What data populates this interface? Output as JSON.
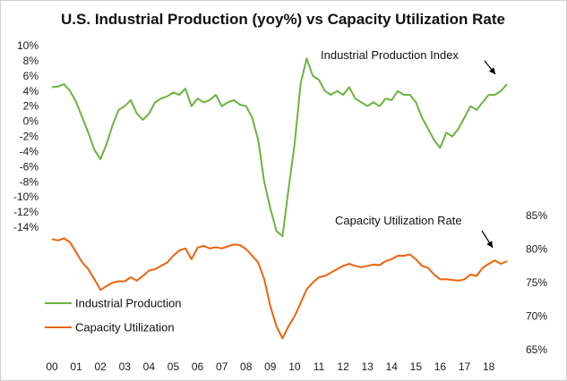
{
  "chart_data": {
    "type": "line",
    "title": "U.S. Industrial Production (yoy%) vs Capacity Utilization Rate",
    "colors": {
      "industrial_production": "#6cb33f",
      "capacity_utilization": "#e8650f",
      "annotation_arrow": "#000000"
    },
    "x_axis": {
      "tick_labels": [
        "00",
        "01",
        "02",
        "03",
        "04",
        "05",
        "06",
        "07",
        "08",
        "09",
        "10",
        "11",
        "12",
        "13",
        "14",
        "15",
        "16",
        "17",
        "18"
      ],
      "range": [
        2000.0,
        2018.9
      ]
    },
    "y_left": {
      "unit": "percent",
      "range": [
        -14,
        10
      ],
      "tick_values": [
        10,
        8,
        6,
        4,
        2,
        0,
        -2,
        -4,
        -6,
        -8,
        -10,
        -12,
        -14
      ],
      "tick_labels": [
        "10%",
        "8%",
        "6%",
        "4%",
        "2%",
        "0%",
        "-2%",
        "-4%",
        "-6%",
        "-8%",
        "-10%",
        "-12%",
        "-14%"
      ]
    },
    "y_right": {
      "unit": "percent",
      "range": [
        65,
        85
      ],
      "tick_values": [
        85,
        80,
        75,
        70,
        65
      ],
      "tick_labels": [
        "85%",
        "80%",
        "75%",
        "70%",
        "65%"
      ]
    },
    "grid": false,
    "legend": {
      "placement": "lower-left",
      "entries": [
        "Industrial Production",
        "Capacity Utilization"
      ]
    },
    "annotations": [
      {
        "text": "Industrial Production  Index",
        "points_to_series": "Industrial Production",
        "near_x": 2018.6
      },
      {
        "text": "Capacity Utilization Rate",
        "points_to_series": "Capacity Utilization",
        "near_x": 2018.6
      }
    ],
    "series": [
      {
        "name": "Industrial Production",
        "axis": "left",
        "points": [
          [
            2000.0,
            4.5
          ],
          [
            2000.25,
            4.6
          ],
          [
            2000.5,
            4.9
          ],
          [
            2000.75,
            4.0
          ],
          [
            2001.0,
            2.5
          ],
          [
            2001.25,
            0.5
          ],
          [
            2001.5,
            -1.5
          ],
          [
            2001.75,
            -3.8
          ],
          [
            2002.0,
            -5.0
          ],
          [
            2002.25,
            -3.0
          ],
          [
            2002.5,
            -0.5
          ],
          [
            2002.75,
            1.5
          ],
          [
            2003.0,
            2.0
          ],
          [
            2003.25,
            2.8
          ],
          [
            2003.5,
            1.0
          ],
          [
            2003.75,
            0.2
          ],
          [
            2004.0,
            1.0
          ],
          [
            2004.25,
            2.5
          ],
          [
            2004.5,
            3.0
          ],
          [
            2004.75,
            3.3
          ],
          [
            2005.0,
            3.8
          ],
          [
            2005.25,
            3.5
          ],
          [
            2005.5,
            4.3
          ],
          [
            2005.75,
            2.0
          ],
          [
            2006.0,
            3.0
          ],
          [
            2006.25,
            2.5
          ],
          [
            2006.5,
            2.8
          ],
          [
            2006.75,
            3.5
          ],
          [
            2007.0,
            2.0
          ],
          [
            2007.25,
            2.5
          ],
          [
            2007.5,
            2.8
          ],
          [
            2007.75,
            2.2
          ],
          [
            2008.0,
            2.0
          ],
          [
            2008.25,
            0.5
          ],
          [
            2008.5,
            -2.5
          ],
          [
            2008.75,
            -8.0
          ],
          [
            2009.0,
            -11.5
          ],
          [
            2009.25,
            -14.5
          ],
          [
            2009.5,
            -15.2
          ],
          [
            2009.75,
            -9.0
          ],
          [
            2010.0,
            -3.0
          ],
          [
            2010.25,
            5.0
          ],
          [
            2010.5,
            8.3
          ],
          [
            2010.75,
            6.0
          ],
          [
            2011.0,
            5.5
          ],
          [
            2011.25,
            4.0
          ],
          [
            2011.5,
            3.5
          ],
          [
            2011.75,
            4.0
          ],
          [
            2012.0,
            3.5
          ],
          [
            2012.25,
            4.5
          ],
          [
            2012.5,
            3.0
          ],
          [
            2012.75,
            2.5
          ],
          [
            2013.0,
            2.0
          ],
          [
            2013.25,
            2.5
          ],
          [
            2013.5,
            2.0
          ],
          [
            2013.75,
            3.0
          ],
          [
            2014.0,
            2.8
          ],
          [
            2014.25,
            4.0
          ],
          [
            2014.5,
            3.5
          ],
          [
            2014.75,
            3.5
          ],
          [
            2015.0,
            2.5
          ],
          [
            2015.25,
            0.5
          ],
          [
            2015.5,
            -1.0
          ],
          [
            2015.75,
            -2.5
          ],
          [
            2016.0,
            -3.5
          ],
          [
            2016.25,
            -1.5
          ],
          [
            2016.5,
            -2.0
          ],
          [
            2016.75,
            -1.0
          ],
          [
            2017.0,
            0.5
          ],
          [
            2017.25,
            2.0
          ],
          [
            2017.5,
            1.5
          ],
          [
            2017.75,
            2.5
          ],
          [
            2018.0,
            3.5
          ],
          [
            2018.25,
            3.5
          ],
          [
            2018.5,
            4.0
          ],
          [
            2018.75,
            4.9
          ]
        ]
      },
      {
        "name": "Capacity Utilization",
        "axis": "right",
        "points": [
          [
            2000.0,
            81.5
          ],
          [
            2000.25,
            81.3
          ],
          [
            2000.5,
            81.6
          ],
          [
            2000.75,
            81.0
          ],
          [
            2001.0,
            79.5
          ],
          [
            2001.25,
            78.0
          ],
          [
            2001.5,
            77.0
          ],
          [
            2001.75,
            75.5
          ],
          [
            2002.0,
            73.9
          ],
          [
            2002.25,
            74.5
          ],
          [
            2002.5,
            75.0
          ],
          [
            2002.75,
            75.2
          ],
          [
            2003.0,
            75.2
          ],
          [
            2003.25,
            75.8
          ],
          [
            2003.5,
            75.3
          ],
          [
            2003.75,
            76.0
          ],
          [
            2004.0,
            76.8
          ],
          [
            2004.25,
            77.0
          ],
          [
            2004.5,
            77.5
          ],
          [
            2004.75,
            78.0
          ],
          [
            2005.0,
            79.0
          ],
          [
            2005.25,
            79.8
          ],
          [
            2005.5,
            80.1
          ],
          [
            2005.75,
            78.5
          ],
          [
            2006.0,
            80.2
          ],
          [
            2006.25,
            80.5
          ],
          [
            2006.5,
            80.1
          ],
          [
            2006.75,
            80.3
          ],
          [
            2007.0,
            80.1
          ],
          [
            2007.25,
            80.4
          ],
          [
            2007.5,
            80.7
          ],
          [
            2007.75,
            80.6
          ],
          [
            2008.0,
            80.0
          ],
          [
            2008.25,
            79.0
          ],
          [
            2008.5,
            78.0
          ],
          [
            2008.75,
            75.5
          ],
          [
            2009.0,
            71.5
          ],
          [
            2009.25,
            68.5
          ],
          [
            2009.5,
            66.7
          ],
          [
            2009.75,
            68.5
          ],
          [
            2010.0,
            70.0
          ],
          [
            2010.25,
            72.0
          ],
          [
            2010.5,
            74.0
          ],
          [
            2010.75,
            75.0
          ],
          [
            2011.0,
            75.8
          ],
          [
            2011.25,
            76.0
          ],
          [
            2011.5,
            76.5
          ],
          [
            2011.75,
            77.0
          ],
          [
            2012.0,
            77.5
          ],
          [
            2012.25,
            77.8
          ],
          [
            2012.5,
            77.5
          ],
          [
            2012.75,
            77.3
          ],
          [
            2013.0,
            77.5
          ],
          [
            2013.25,
            77.7
          ],
          [
            2013.5,
            77.6
          ],
          [
            2013.75,
            78.2
          ],
          [
            2014.0,
            78.5
          ],
          [
            2014.25,
            79.0
          ],
          [
            2014.5,
            79.0
          ],
          [
            2014.75,
            79.2
          ],
          [
            2015.0,
            78.5
          ],
          [
            2015.25,
            77.5
          ],
          [
            2015.5,
            77.2
          ],
          [
            2015.75,
            76.2
          ],
          [
            2016.0,
            75.5
          ],
          [
            2016.25,
            75.5
          ],
          [
            2016.5,
            75.4
          ],
          [
            2016.75,
            75.3
          ],
          [
            2017.0,
            75.5
          ],
          [
            2017.25,
            76.2
          ],
          [
            2017.5,
            76.0
          ],
          [
            2017.75,
            77.2
          ],
          [
            2018.0,
            77.8
          ],
          [
            2018.25,
            78.3
          ],
          [
            2018.5,
            77.8
          ],
          [
            2018.75,
            78.2
          ]
        ]
      }
    ]
  }
}
